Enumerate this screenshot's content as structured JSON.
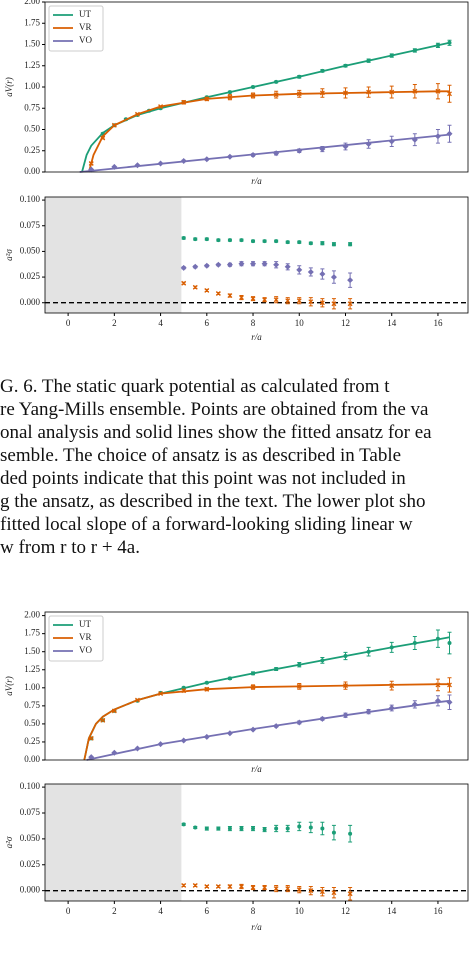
{
  "chart_data": [
    {
      "type": "errorbar",
      "xlabel": "r/a",
      "ylabel": "aV(r)",
      "xlim": [
        -1,
        17.3
      ],
      "ylim": [
        0,
        2.0
      ],
      "yticks": [
        {
          "value": 0,
          "label": "0.00"
        },
        {
          "value": 0.25,
          "label": "0.25"
        },
        {
          "value": 0.5,
          "label": "0.50"
        },
        {
          "value": 0.75,
          "label": "0.75"
        },
        {
          "value": 1.0,
          "label": "1.00"
        },
        {
          "value": 1.25,
          "label": "1.25"
        },
        {
          "value": 1.5,
          "label": "1.50"
        },
        {
          "value": 1.75,
          "label": "1.75"
        },
        {
          "value": 2.0,
          "label": "2.00"
        }
      ],
      "legend": "upper left",
      "series": [
        {
          "name": "UT",
          "color": "#1b9e77",
          "marker": "circle",
          "x": [
            1.5,
            2,
            2.5,
            3,
            3.5,
            4,
            5,
            6,
            7,
            8,
            9,
            10,
            11,
            12,
            13,
            14,
            15,
            16,
            16.5
          ],
          "values": [
            0.45,
            0.55,
            0.62,
            0.67,
            0.72,
            0.75,
            0.82,
            0.88,
            0.94,
            1.0,
            1.06,
            1.12,
            1.19,
            1.25,
            1.31,
            1.37,
            1.43,
            1.49,
            1.52
          ],
          "errors": [
            0.01,
            0.01,
            0.01,
            0.01,
            0.01,
            0.01,
            0.01,
            0.01,
            0.01,
            0.01,
            0.01,
            0.015,
            0.015,
            0.015,
            0.02,
            0.02,
            0.02,
            0.025,
            0.03
          ],
          "fit": {
            "x": [
              0.6,
              0.8,
              1,
              1.5,
              2,
              3,
              4,
              6,
              8,
              10,
              12,
              14,
              16,
              16.5
            ],
            "values": [
              0,
              0.2,
              0.31,
              0.46,
              0.55,
              0.67,
              0.75,
              0.88,
              1.0,
              1.12,
              1.25,
              1.37,
              1.49,
              1.52
            ]
          }
        },
        {
          "name": "VR",
          "color": "#d95f02",
          "marker": "cross",
          "x": [
            1,
            1.5,
            2,
            3,
            4,
            5,
            6,
            7,
            8,
            9,
            10,
            11,
            12,
            13,
            14,
            15,
            16,
            16.5
          ],
          "values": [
            0.1,
            0.4,
            0.55,
            0.68,
            0.77,
            0.82,
            0.86,
            0.88,
            0.9,
            0.91,
            0.92,
            0.93,
            0.93,
            0.94,
            0.94,
            0.95,
            0.95,
            0.92
          ],
          "errors": [
            0.01,
            0.01,
            0.01,
            0.01,
            0.01,
            0.02,
            0.02,
            0.03,
            0.03,
            0.04,
            0.04,
            0.05,
            0.06,
            0.06,
            0.07,
            0.08,
            0.09,
            0.1
          ],
          "fit": {
            "x": [
              0.9,
              1.1,
              1.5,
              2,
              3,
              4,
              6,
              8,
              10,
              12,
              14,
              16,
              16.5
            ],
            "values": [
              0,
              0.2,
              0.42,
              0.55,
              0.68,
              0.77,
              0.86,
              0.9,
              0.92,
              0.93,
              0.94,
              0.95,
              0.95
            ]
          }
        },
        {
          "name": "VO",
          "color": "#7570b3",
          "marker": "diamond",
          "x": [
            1,
            2,
            3,
            4,
            5,
            6,
            7,
            8,
            9,
            10,
            11,
            12,
            13,
            14,
            15,
            16,
            16.5
          ],
          "values": [
            0.03,
            0.06,
            0.08,
            0.1,
            0.13,
            0.15,
            0.18,
            0.2,
            0.22,
            0.25,
            0.27,
            0.3,
            0.33,
            0.36,
            0.38,
            0.42,
            0.45
          ],
          "errors": [
            0.005,
            0.005,
            0.005,
            0.005,
            0.01,
            0.01,
            0.01,
            0.015,
            0.02,
            0.02,
            0.03,
            0.04,
            0.05,
            0.06,
            0.07,
            0.08,
            0.1
          ],
          "fit": {
            "x": [
              0.5,
              16.5
            ],
            "values": [
              0,
              0.44
            ]
          }
        }
      ]
    },
    {
      "type": "errorbar",
      "xlabel": "r/a",
      "ylabel": "a²σ",
      "xlim": [
        -1,
        17.3
      ],
      "ylim": [
        -0.01,
        0.103
      ],
      "xticks": [
        0,
        2,
        4,
        6,
        8,
        10,
        12,
        14,
        16
      ],
      "yticks": [
        {
          "value": 0,
          "label": "0.000"
        },
        {
          "value": 0.025,
          "label": "0.025"
        },
        {
          "value": 0.05,
          "label": "0.050"
        },
        {
          "value": 0.075,
          "label": "0.075"
        },
        {
          "value": 0.1,
          "label": "0.100"
        }
      ],
      "shaded_xlim": [
        -1,
        4.9
      ],
      "reference_line": 0,
      "series": [
        {
          "name": "UT",
          "color": "#1b9e77",
          "marker": "circle",
          "x": [
            5,
            5.5,
            6,
            6.5,
            7,
            7.5,
            8,
            8.5,
            9,
            9.5,
            10,
            10.5,
            11,
            11.5,
            12.2
          ],
          "values": [
            0.063,
            0.062,
            0.062,
            0.061,
            0.061,
            0.061,
            0.06,
            0.06,
            0.06,
            0.059,
            0.059,
            0.058,
            0.058,
            0.057,
            0.057
          ],
          "errors": [
            0.001,
            0.001,
            0.001,
            0.001,
            0.001,
            0.001,
            0.001,
            0.001,
            0.001,
            0.001,
            0.001,
            0.001,
            0.0015,
            0.0015,
            0.0015
          ]
        },
        {
          "name": "VO",
          "color": "#7570b3",
          "marker": "diamond",
          "x": [
            5,
            5.5,
            6,
            6.5,
            7,
            7.5,
            8,
            8.5,
            9,
            9.5,
            10,
            10.5,
            11,
            11.5,
            12.2
          ],
          "values": [
            0.034,
            0.035,
            0.036,
            0.037,
            0.037,
            0.038,
            0.038,
            0.038,
            0.037,
            0.035,
            0.032,
            0.03,
            0.028,
            0.025,
            0.022
          ],
          "errors": [
            0.001,
            0.001,
            0.001,
            0.001,
            0.0015,
            0.002,
            0.002,
            0.002,
            0.003,
            0.003,
            0.004,
            0.004,
            0.005,
            0.006,
            0.007
          ]
        },
        {
          "name": "VR",
          "color": "#d95f02",
          "marker": "cross",
          "x": [
            5,
            5.5,
            6,
            6.5,
            7,
            7.5,
            8,
            8.5,
            9,
            9.5,
            10,
            10.5,
            11,
            11.5,
            12.2
          ],
          "values": [
            0.019,
            0.015,
            0.012,
            0.009,
            0.007,
            0.005,
            0.004,
            0.003,
            0.003,
            0.002,
            0.002,
            0.001,
            0,
            -0.001,
            -0.001
          ],
          "errors": [
            0.001,
            0.001,
            0.001,
            0.001,
            0.0015,
            0.002,
            0.002,
            0.002,
            0.003,
            0.003,
            0.003,
            0.004,
            0.004,
            0.005,
            0.005
          ]
        }
      ]
    },
    {
      "type": "errorbar",
      "xlabel": "r/a",
      "ylabel": "aV(r)",
      "xlim": [
        -1,
        17.3
      ],
      "ylim": [
        0,
        2.05
      ],
      "yticks": [
        {
          "value": 0,
          "label": "0.00"
        },
        {
          "value": 0.25,
          "label": "0.25"
        },
        {
          "value": 0.5,
          "label": "0.50"
        },
        {
          "value": 0.75,
          "label": "0.75"
        },
        {
          "value": 1.0,
          "label": "1.00"
        },
        {
          "value": 1.25,
          "label": "1.25"
        },
        {
          "value": 1.5,
          "label": "1.50"
        },
        {
          "value": 1.75,
          "label": "1.75"
        },
        {
          "value": 2.0,
          "label": "2.00"
        }
      ],
      "legend": "upper left",
      "series": [
        {
          "name": "UT",
          "color": "#1b9e77",
          "marker": "circle",
          "x": [
            1,
            1.5,
            2,
            3,
            4,
            5,
            6,
            7,
            8,
            9,
            10,
            11,
            12,
            13,
            14,
            15,
            16,
            16.5
          ],
          "values": [
            0.3,
            0.55,
            0.68,
            0.82,
            0.93,
            1.0,
            1.07,
            1.13,
            1.2,
            1.26,
            1.32,
            1.38,
            1.44,
            1.5,
            1.56,
            1.62,
            1.68,
            1.62
          ],
          "errors": [
            0.01,
            0.01,
            0.01,
            0.01,
            0.01,
            0.01,
            0.01,
            0.015,
            0.02,
            0.02,
            0.03,
            0.04,
            0.05,
            0.06,
            0.07,
            0.09,
            0.12,
            0.15
          ],
          "fit": {
            "x": [
              0.7,
              0.9,
              1.2,
              1.5,
              2,
              3,
              4,
              6,
              8,
              10,
              12,
              14,
              16,
              16.5
            ],
            "values": [
              0,
              0.3,
              0.5,
              0.6,
              0.7,
              0.83,
              0.92,
              1.07,
              1.2,
              1.32,
              1.44,
              1.56,
              1.67,
              1.7
            ]
          }
        },
        {
          "name": "VR",
          "color": "#d95f02",
          "marker": "cross",
          "x": [
            1,
            1.5,
            2,
            3,
            4,
            5,
            6,
            8,
            10,
            12,
            14,
            16,
            16.5
          ],
          "values": [
            0.3,
            0.55,
            0.68,
            0.83,
            0.92,
            0.96,
            0.98,
            1.01,
            1.02,
            1.03,
            1.03,
            1.04,
            1.04
          ],
          "errors": [
            0.01,
            0.01,
            0.01,
            0.01,
            0.01,
            0.02,
            0.02,
            0.03,
            0.04,
            0.05,
            0.06,
            0.08,
            0.1
          ],
          "fit": {
            "x": [
              0.7,
              0.9,
              1.2,
              1.5,
              2,
              3,
              4,
              6,
              8,
              10,
              12,
              14,
              16,
              16.5
            ],
            "values": [
              0,
              0.3,
              0.5,
              0.6,
              0.7,
              0.83,
              0.92,
              0.98,
              1.01,
              1.02,
              1.03,
              1.04,
              1.05,
              1.05
            ]
          }
        },
        {
          "name": "VO",
          "color": "#7570b3",
          "marker": "diamond",
          "x": [
            1,
            2,
            3,
            4,
            5,
            6,
            7,
            8,
            9,
            10,
            11,
            12,
            13,
            14,
            15,
            16,
            16.5
          ],
          "values": [
            0.04,
            0.1,
            0.16,
            0.22,
            0.27,
            0.32,
            0.37,
            0.42,
            0.47,
            0.52,
            0.57,
            0.62,
            0.67,
            0.72,
            0.77,
            0.82,
            0.8
          ],
          "errors": [
            0.005,
            0.005,
            0.005,
            0.005,
            0.005,
            0.01,
            0.01,
            0.01,
            0.015,
            0.02,
            0.02,
            0.03,
            0.03,
            0.04,
            0.05,
            0.07,
            0.1
          ],
          "fit": {
            "x": [
              0.8,
              4,
              8,
              12,
              16,
              16.5
            ],
            "values": [
              0,
              0.22,
              0.43,
              0.62,
              0.8,
              0.82
            ]
          }
        }
      ]
    },
    {
      "type": "errorbar",
      "xlabel": "r/a",
      "ylabel": "a²σ",
      "xlim": [
        -1,
        17.3
      ],
      "ylim": [
        -0.01,
        0.103
      ],
      "xticks": [
        0,
        2,
        4,
        6,
        8,
        10,
        12,
        14,
        16
      ],
      "yticks": [
        {
          "value": 0,
          "label": "0.000"
        },
        {
          "value": 0.025,
          "label": "0.025"
        },
        {
          "value": 0.05,
          "label": "0.050"
        },
        {
          "value": 0.075,
          "label": "0.075"
        },
        {
          "value": 0.1,
          "label": "0.100"
        }
      ],
      "shaded_xlim": [
        -1,
        4.9
      ],
      "reference_line": 0,
      "series": [
        {
          "name": "UT",
          "color": "#1b9e77",
          "marker": "circle",
          "x": [
            5,
            5.5,
            6,
            6.5,
            7,
            7.5,
            8,
            8.5,
            9,
            9.5,
            10,
            10.5,
            11,
            11.5,
            12.2
          ],
          "values": [
            0.064,
            0.061,
            0.06,
            0.06,
            0.06,
            0.06,
            0.06,
            0.059,
            0.06,
            0.06,
            0.062,
            0.061,
            0.06,
            0.056,
            0.055
          ],
          "errors": [
            0.001,
            0.001,
            0.0015,
            0.0015,
            0.002,
            0.002,
            0.002,
            0.002,
            0.003,
            0.003,
            0.004,
            0.005,
            0.006,
            0.007,
            0.008
          ]
        },
        {
          "name": "VR",
          "color": "#d95f02",
          "marker": "cross",
          "x": [
            5,
            5.5,
            6,
            6.5,
            7,
            7.5,
            8,
            8.5,
            9,
            9.5,
            10,
            10.5,
            11,
            11.5,
            12.2
          ],
          "values": [
            0.005,
            0.005,
            0.004,
            0.004,
            0.004,
            0.004,
            0.003,
            0.003,
            0.002,
            0.002,
            0.001,
            0,
            -0.001,
            -0.002,
            -0.003
          ],
          "errors": [
            0.001,
            0.001,
            0.001,
            0.001,
            0.0015,
            0.002,
            0.002,
            0.002,
            0.003,
            0.003,
            0.003,
            0.004,
            0.004,
            0.005,
            0.006
          ]
        }
      ]
    }
  ],
  "caption": {
    "lines": [
      "G. 6.   The static quark potential as calculated from t",
      "re Yang-Mills ensemble. Points are obtained from the va",
      "onal analysis and solid lines show the fitted ansatz for ea",
      "semble.  The choice of ansatz is as described in Table",
      "ded points indicate that this point was not included in",
      "g the ansatz, as described in the text. The lower plot sho",
      " fitted local slope of a forward-looking sliding linear w",
      "w from r to r + 4a."
    ]
  }
}
